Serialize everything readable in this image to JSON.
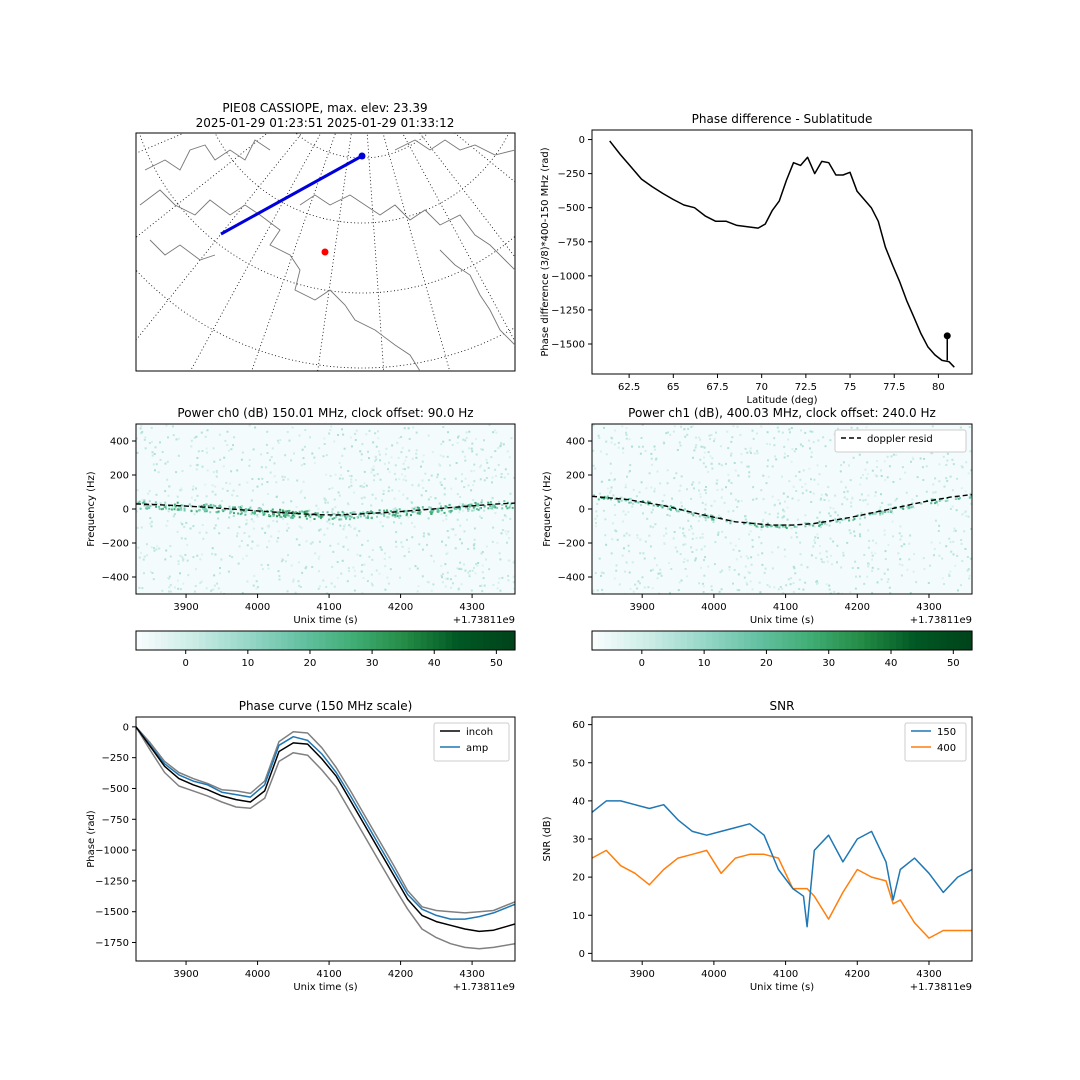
{
  "figure": {
    "map_title_line1": "PIE08 CASSIOPE, max. elev: 23.39",
    "map_title_line2": "2025-01-29 01:23:51 2025-01-29 01:33:12"
  },
  "chart_data": [
    {
      "id": "phase_lat",
      "type": "line",
      "title": "Phase difference - Sublatitude",
      "xlabel": "Latitude (deg)",
      "ylabel": "Phase difference (3/8)*400-150 MHz (rad)",
      "xlim": [
        60.4,
        81.9
      ],
      "ylim": [
        -1720,
        70
      ],
      "xticks": [
        62.5,
        65.0,
        67.5,
        70.0,
        72.5,
        75.0,
        77.5,
        80.0
      ],
      "yticks": [
        0,
        -250,
        -500,
        -750,
        -1000,
        -1250,
        -1500
      ],
      "series": [
        {
          "color": "#000000",
          "x": [
            61.4,
            62.0,
            62.6,
            63.2,
            63.8,
            64.4,
            65.0,
            65.6,
            66.2,
            66.8,
            67.4,
            68.0,
            68.6,
            69.2,
            69.8,
            70.2,
            70.6,
            71.0,
            71.4,
            71.8,
            72.2,
            72.6,
            73.0,
            73.4,
            73.8,
            74.2,
            74.6,
            75.0,
            75.4,
            75.8,
            76.2,
            76.6,
            77.0,
            77.4,
            77.8,
            78.2,
            78.6,
            79.0,
            79.4,
            79.8,
            80.2,
            80.6,
            80.9
          ],
          "y": [
            -10,
            -110,
            -200,
            -290,
            -345,
            -395,
            -440,
            -480,
            -500,
            -560,
            -600,
            -600,
            -630,
            -640,
            -650,
            -620,
            -520,
            -450,
            -300,
            -170,
            -190,
            -130,
            -250,
            -160,
            -170,
            -260,
            -260,
            -240,
            -380,
            -440,
            -500,
            -600,
            -790,
            -920,
            -1040,
            -1180,
            -1300,
            -1420,
            -1520,
            -1580,
            -1620,
            -1630,
            -1670
          ]
        }
      ],
      "marker": {
        "x": 80.5,
        "y": -1440,
        "color": "#000000"
      }
    },
    {
      "id": "power_ch0",
      "type": "heatmap",
      "title": "Power ch0 (dB) 150.01 MHz, clock offset: 90.0 Hz",
      "xlabel": "Unix time (s)",
      "ylabel": "Frequency (Hz)",
      "offset_label": "+1.73811e9",
      "xlim": [
        3830,
        4360
      ],
      "ylim": [
        -500,
        500
      ],
      "xticks": [
        3900,
        4000,
        4100,
        4200,
        4300
      ],
      "yticks": [
        400,
        200,
        0,
        -200,
        -400
      ],
      "colorbar": {
        "ticks": [
          0,
          10,
          20,
          30,
          40,
          50
        ],
        "range": [
          -8,
          53
        ]
      },
      "doppler_curve": {
        "x": [
          3830,
          3880,
          3930,
          3980,
          4030,
          4080,
          4110,
          4140,
          4190,
          4240,
          4290,
          4330,
          4360
        ],
        "y": [
          30,
          22,
          10,
          -5,
          -20,
          -33,
          -35,
          -30,
          -18,
          -2,
          15,
          28,
          35
        ]
      }
    },
    {
      "id": "power_ch1",
      "type": "heatmap",
      "title": "Power ch1 (dB), 400.03 MHz, clock offset: 240.0 Hz",
      "xlabel": "Unix time (s)",
      "ylabel": "Frequency (Hz)",
      "offset_label": "+1.73811e9",
      "xlim": [
        3830,
        4360
      ],
      "ylim": [
        -500,
        500
      ],
      "xticks": [
        3900,
        4000,
        4100,
        4200,
        4300
      ],
      "yticks": [
        400,
        200,
        0,
        -200,
        -400
      ],
      "legend": [
        "doppler resid"
      ],
      "colorbar": {
        "ticks": [
          0,
          10,
          20,
          30,
          40,
          50
        ],
        "range": [
          -8,
          53
        ]
      },
      "doppler_curve": {
        "x": [
          3830,
          3880,
          3930,
          3980,
          4030,
          4080,
          4110,
          4140,
          4190,
          4240,
          4290,
          4330,
          4360
        ],
        "y": [
          75,
          55,
          20,
          -30,
          -75,
          -95,
          -95,
          -85,
          -50,
          -5,
          40,
          70,
          85
        ]
      }
    },
    {
      "id": "phase_curve",
      "type": "line",
      "title": "Phase curve (150 MHz scale)",
      "xlabel": "Unix time (s)",
      "ylabel": "Phase (rad)",
      "offset_label": "+1.73811e9",
      "xlim": [
        3830,
        4360
      ],
      "ylim": [
        -1900,
        80
      ],
      "xticks": [
        3900,
        4000,
        4100,
        4200,
        4300
      ],
      "yticks": [
        0,
        -250,
        -500,
        -750,
        -1000,
        -1250,
        -1500,
        -1750
      ],
      "legend_placement": "top-right",
      "x": [
        3830,
        3850,
        3870,
        3890,
        3910,
        3930,
        3950,
        3970,
        3990,
        4010,
        4030,
        4050,
        4070,
        4090,
        4110,
        4130,
        4150,
        4170,
        4190,
        4210,
        4230,
        4250,
        4270,
        4290,
        4310,
        4330,
        4360
      ],
      "series": [
        {
          "name": "incoh",
          "color": "#000000",
          "values": [
            0,
            -160,
            -320,
            -420,
            -470,
            -510,
            -560,
            -590,
            -610,
            -520,
            -200,
            -130,
            -140,
            -260,
            -400,
            -600,
            -800,
            -1000,
            -1200,
            -1400,
            -1530,
            -1580,
            -1610,
            -1640,
            -1660,
            -1650,
            -1600
          ]
        },
        {
          "name": "amp",
          "color": "#1f77b4",
          "values": [
            0,
            -150,
            -300,
            -390,
            -440,
            -470,
            -530,
            -550,
            -570,
            -470,
            -150,
            -80,
            -110,
            -220,
            -370,
            -560,
            -760,
            -960,
            -1160,
            -1360,
            -1480,
            -1530,
            -1560,
            -1560,
            -1540,
            -1510,
            -1440
          ]
        },
        {
          "name": "",
          "color": "#808080",
          "values": [
            0,
            -130,
            -280,
            -370,
            -420,
            -460,
            -510,
            -520,
            -540,
            -440,
            -120,
            -40,
            -50,
            -170,
            -330,
            -520,
            -720,
            -920,
            -1120,
            -1330,
            -1460,
            -1490,
            -1500,
            -1510,
            -1500,
            -1490,
            -1420
          ]
        },
        {
          "name": "",
          "color": "#808080",
          "values": [
            0,
            -190,
            -370,
            -480,
            -520,
            -560,
            -610,
            -650,
            -660,
            -580,
            -280,
            -210,
            -230,
            -350,
            -490,
            -690,
            -890,
            -1090,
            -1290,
            -1480,
            -1640,
            -1710,
            -1760,
            -1790,
            -1800,
            -1790,
            -1760
          ]
        }
      ]
    },
    {
      "id": "snr",
      "type": "line",
      "title": "SNR",
      "xlabel": "Unix time (s)",
      "ylabel": "SNR (dB)",
      "offset_label": "+1.73811e9",
      "xlim": [
        3830,
        4360
      ],
      "ylim": [
        -2,
        62
      ],
      "xticks": [
        3900,
        4000,
        4100,
        4200,
        4300
      ],
      "yticks": [
        0,
        10,
        20,
        30,
        40,
        50,
        60
      ],
      "legend_placement": "top-right",
      "x": [
        3830,
        3850,
        3870,
        3890,
        3910,
        3930,
        3950,
        3970,
        3990,
        4010,
        4030,
        4050,
        4070,
        4090,
        4110,
        4125,
        4130,
        4140,
        4160,
        4180,
        4200,
        4220,
        4240,
        4250,
        4260,
        4280,
        4300,
        4320,
        4340,
        4360
      ],
      "series": [
        {
          "name": "150",
          "color": "#1f77b4",
          "values": [
            37,
            40,
            40,
            39,
            38,
            39,
            35,
            32,
            31,
            32,
            33,
            34,
            31,
            22,
            17,
            15,
            7,
            27,
            31,
            24,
            30,
            32,
            24,
            14,
            22,
            25,
            21,
            16,
            20,
            22
          ]
        },
        {
          "name": "400",
          "color": "#ff7f0e",
          "values": [
            25,
            27,
            23,
            21,
            18,
            22,
            25,
            26,
            27,
            21,
            25,
            26,
            26,
            25,
            17,
            17,
            17,
            15,
            9,
            16,
            22,
            20,
            19,
            13,
            14,
            8,
            4,
            6,
            6,
            6
          ]
        }
      ]
    }
  ]
}
